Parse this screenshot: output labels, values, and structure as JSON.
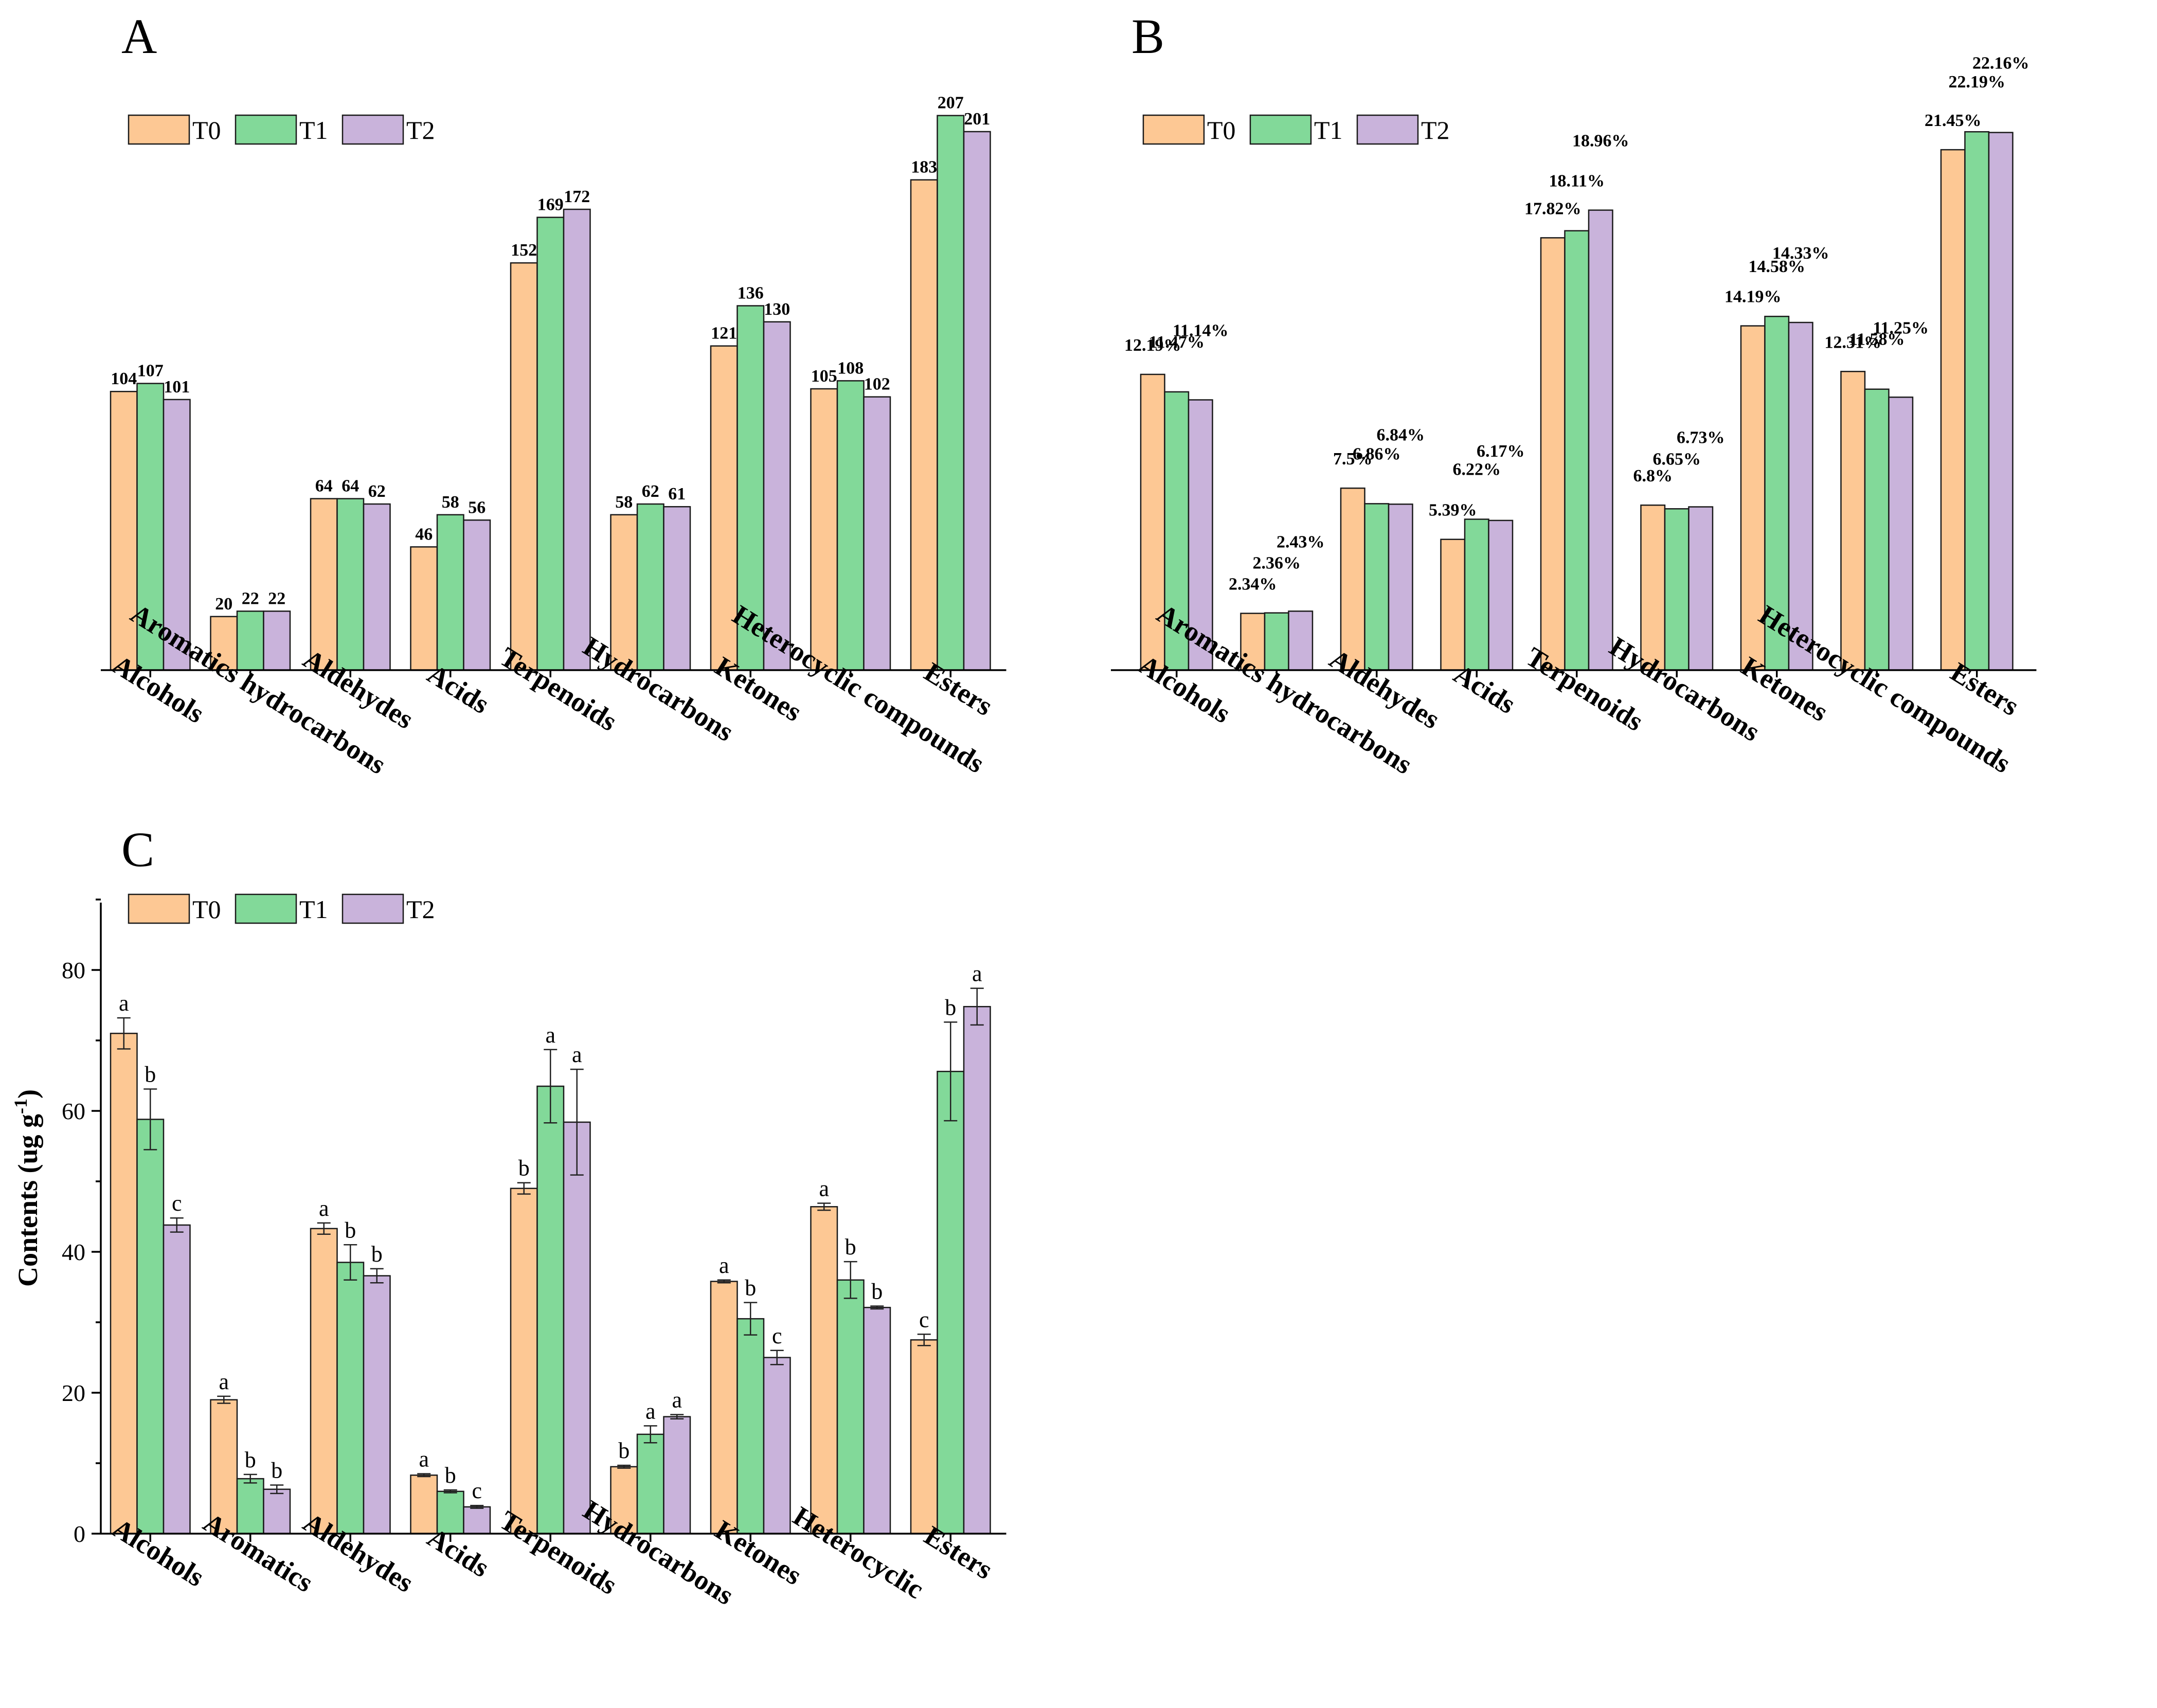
{
  "colors": {
    "T0": "#FDC894",
    "T1": "#82D999",
    "T2": "#C9B3DB"
  },
  "chart_data": [
    {
      "panel": "A",
      "type": "bar",
      "title": "",
      "legend": [
        "T0",
        "T1",
        "T2"
      ],
      "categories": [
        "Alcohols",
        "Aromatics hydrocarbons",
        "Aldehydes",
        "Acids",
        "Terpenoids",
        "Hydrocarbons",
        "Ketones",
        "Heterocyclic compounds",
        "Esters"
      ],
      "series": [
        {
          "name": "T0",
          "values": [
            104,
            20,
            64,
            46,
            152,
            58,
            121,
            105,
            183
          ]
        },
        {
          "name": "T1",
          "values": [
            107,
            22,
            64,
            58,
            169,
            62,
            136,
            108,
            207
          ]
        },
        {
          "name": "T2",
          "values": [
            101,
            22,
            62,
            56,
            172,
            61,
            130,
            102,
            201
          ]
        }
      ],
      "ylim": [
        0,
        215
      ]
    },
    {
      "panel": "B",
      "type": "bar",
      "title": "",
      "legend": [
        "T0",
        "T1",
        "T2"
      ],
      "categories": [
        "Alcohols",
        "Aromatics hydrocarbons",
        "Aldehydes",
        "Acids",
        "Terpenoids",
        "Hydrocarbons",
        "Ketones",
        "Heterocyclic compounds",
        "Esters"
      ],
      "series": [
        {
          "name": "T0",
          "values": [
            12.19,
            2.34,
            7.5,
            5.39,
            17.82,
            6.8,
            14.19,
            12.31,
            21.45
          ],
          "labels": [
            "12.19%",
            "2.34%",
            "7.5%",
            "5.39%",
            "17.82%",
            "6.8%",
            "14.19%",
            "12.31%",
            "21.45%"
          ]
        },
        {
          "name": "T1",
          "values": [
            11.47,
            2.36,
            6.86,
            6.22,
            18.11,
            6.65,
            14.58,
            11.58,
            22.19
          ],
          "labels": [
            "11.47%",
            "2.36%",
            "6.86%",
            "6.22%",
            "18.11%",
            "6.65%",
            "14.58%",
            "11.58%",
            "22.19%"
          ]
        },
        {
          "name": "T2",
          "values": [
            11.14,
            2.43,
            6.84,
            6.17,
            18.96,
            6.73,
            14.33,
            11.25,
            22.16
          ],
          "labels": [
            "11.14%",
            "2.43%",
            "6.84%",
            "6.17%",
            "18.96%",
            "6.73%",
            "14.33%",
            "11.25%",
            "22.16%"
          ]
        }
      ],
      "ylim": [
        0,
        23
      ]
    },
    {
      "panel": "C",
      "type": "bar",
      "title": "",
      "ylabel": "Contents (ug g",
      "ylabel_sup": "-1",
      "ylabel_end": ")",
      "legend": [
        "T0",
        "T1",
        "T2"
      ],
      "categories": [
        "Alcohols",
        "Aromatics",
        "Aldehydes",
        "Acids",
        "Terpenoids",
        "Hydrocarbons",
        "Ketones",
        "Heterocyclic",
        "Esters"
      ],
      "series": [
        {
          "name": "T0",
          "values": [
            71,
            19,
            43.3,
            8.3,
            49,
            9.5,
            35.8,
            46.4,
            27.5
          ],
          "errors": [
            2.2,
            0.5,
            0.8,
            0.2,
            0.8,
            0.2,
            0.2,
            0.5,
            0.8
          ],
          "sig": [
            "a",
            "a",
            "a",
            "a",
            "b",
            "b",
            "a",
            "a",
            "c"
          ]
        },
        {
          "name": "T1",
          "values": [
            58.8,
            7.8,
            38.5,
            6,
            63.5,
            14.1,
            30.5,
            36,
            65.6
          ],
          "errors": [
            4.3,
            0.6,
            2.5,
            0.2,
            5.2,
            1.2,
            2.3,
            2.6,
            7
          ],
          "sig": [
            "b",
            "b",
            "b",
            "b",
            "a",
            "a",
            "b",
            "b",
            "b"
          ]
        },
        {
          "name": "T2",
          "values": [
            43.8,
            6.3,
            36.6,
            3.8,
            58.4,
            16.6,
            25,
            32.1,
            74.8
          ],
          "errors": [
            1,
            0.6,
            1,
            0.2,
            7.5,
            0.3,
            1,
            0.2,
            2.6
          ],
          "sig": [
            "c",
            "b",
            "b",
            "c",
            "a",
            "a",
            "c",
            "b",
            "a"
          ]
        }
      ],
      "yticks": [
        0,
        20,
        40,
        60,
        80
      ],
      "ylim": [
        0,
        90
      ]
    }
  ]
}
